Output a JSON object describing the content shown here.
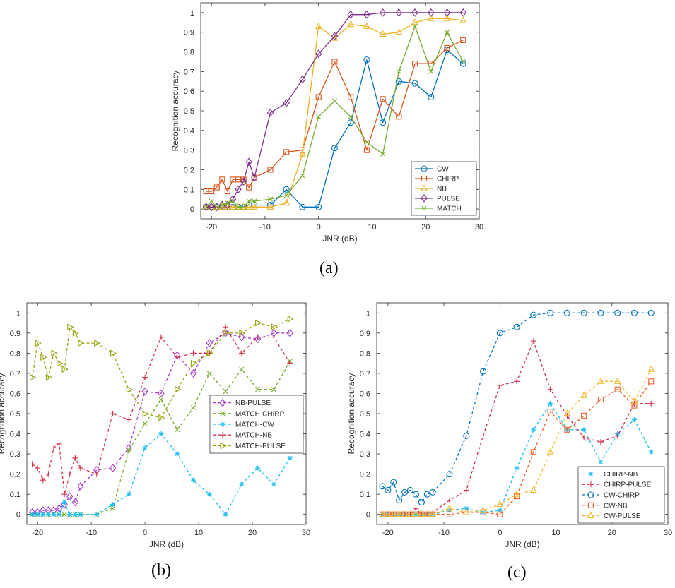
{
  "captions": [
    "(a)",
    "(b)",
    "(c)"
  ],
  "chart_data": [
    {
      "id": "a",
      "type": "line",
      "caption": "(a)",
      "title": "",
      "xlabel": "JNR (dB)",
      "ylabel": "Recognition accuracy",
      "xlim": [
        -22,
        30
      ],
      "ylim": [
        -0.05,
        1.05
      ],
      "xticks": [
        -20,
        -10,
        0,
        10,
        20,
        30
      ],
      "yticks": [
        0,
        0.1,
        0.2,
        0.3,
        0.4,
        0.5,
        0.6,
        0.7,
        0.8,
        0.9,
        1
      ],
      "grid": false,
      "legend_position": "bottom-right",
      "series": [
        {
          "name": "CW",
          "color": "#0072bd",
          "marker": "circle",
          "style": "solid",
          "x": [
            -21,
            -20,
            -19,
            -18,
            -17,
            -16,
            -15,
            -14,
            -13,
            -12,
            -9,
            -6,
            -3,
            0,
            3,
            6,
            9,
            12,
            15,
            18,
            21,
            24,
            27
          ],
          "y": [
            0.01,
            0.01,
            0.01,
            0.01,
            0.01,
            0.01,
            0.01,
            0.01,
            0.02,
            0.02,
            0.02,
            0.1,
            0.01,
            0.01,
            0.31,
            0.44,
            0.76,
            0.44,
            0.65,
            0.64,
            0.57,
            0.81,
            0.74
          ]
        },
        {
          "name": "CHIRP",
          "color": "#d95319",
          "marker": "square",
          "style": "solid",
          "x": [
            -21,
            -20,
            -19,
            -18,
            -17,
            -16,
            -15,
            -14,
            -13,
            -12,
            -9,
            -6,
            -3,
            0,
            3,
            6,
            9,
            12,
            15,
            18,
            21,
            24,
            27
          ],
          "y": [
            0.09,
            0.09,
            0.11,
            0.15,
            0.09,
            0.15,
            0.15,
            0.15,
            0.11,
            0.16,
            0.2,
            0.29,
            0.3,
            0.57,
            0.75,
            0.57,
            0.3,
            0.56,
            0.47,
            0.74,
            0.74,
            0.82,
            0.86
          ]
        },
        {
          "name": "NB",
          "color": "#edb120",
          "marker": "triangle-up",
          "style": "solid",
          "x": [
            -21,
            -20,
            -19,
            -18,
            -17,
            -16,
            -15,
            -14,
            -13,
            -12,
            -9,
            -6,
            -3,
            0,
            3,
            6,
            9,
            12,
            15,
            18,
            21,
            24,
            27
          ],
          "y": [
            0.01,
            0.01,
            0.01,
            0.01,
            0.01,
            0.01,
            0.01,
            0.01,
            0.01,
            0.01,
            0.01,
            0.03,
            0.28,
            0.93,
            0.87,
            0.94,
            0.93,
            0.89,
            0.9,
            0.95,
            0.97,
            0.97,
            0.96
          ]
        },
        {
          "name": "PULSE",
          "color": "#7e2f8e",
          "marker": "diamond",
          "style": "solid",
          "x": [
            -21,
            -20,
            -19,
            -18,
            -17,
            -16,
            -15,
            -14,
            -13,
            -12,
            -9,
            -6,
            -3,
            0,
            3,
            6,
            9,
            12,
            15,
            18,
            21,
            24,
            27
          ],
          "y": [
            0.01,
            0.01,
            0.01,
            0.02,
            0.02,
            0.05,
            0.1,
            0.14,
            0.24,
            0.16,
            0.49,
            0.54,
            0.66,
            0.79,
            0.88,
            0.99,
            0.99,
            1.0,
            1.0,
            1.0,
            1.0,
            1.0,
            1.0
          ]
        },
        {
          "name": "MATCH",
          "color": "#77ac30",
          "marker": "x",
          "style": "solid",
          "x": [
            -21,
            -20,
            -19,
            -18,
            -17,
            -16,
            -15,
            -14,
            -13,
            -12,
            -9,
            -6,
            -3,
            0,
            3,
            6,
            9,
            12,
            15,
            18,
            21,
            24,
            27
          ],
          "y": [
            0.01,
            0.04,
            0.01,
            0.02,
            0.03,
            0.04,
            0.01,
            0.01,
            0.04,
            0.04,
            0.05,
            0.07,
            0.17,
            0.47,
            0.55,
            0.47,
            0.34,
            0.28,
            0.7,
            0.93,
            0.7,
            0.9,
            0.75
          ]
        }
      ]
    },
    {
      "id": "b",
      "type": "line",
      "caption": "(b)",
      "title": "",
      "xlabel": "JNR (dB)",
      "ylabel": "Recognition accuracy",
      "xlim": [
        -22,
        30
      ],
      "ylim": [
        -0.05,
        1.05
      ],
      "xticks": [
        -20,
        -10,
        0,
        10,
        20,
        30
      ],
      "yticks": [
        0,
        0.1,
        0.2,
        0.3,
        0.4,
        0.5,
        0.6,
        0.7,
        0.8,
        0.9,
        1
      ],
      "grid": false,
      "legend_position": "middle-right",
      "series": [
        {
          "name": "NB-PULSE",
          "color": "#a23ed1",
          "marker": "diamond",
          "style": "dashed",
          "x": [
            -21,
            -20,
            -19,
            -18,
            -17,
            -16,
            -15,
            -14,
            -13,
            -12,
            -9,
            -6,
            -3,
            0,
            3,
            6,
            9,
            12,
            15,
            18,
            21,
            24,
            27
          ],
          "y": [
            0.01,
            0.01,
            0.02,
            0.02,
            0.02,
            0.03,
            0.05,
            0.09,
            0.06,
            0.14,
            0.22,
            0.23,
            0.33,
            0.61,
            0.6,
            0.79,
            0.7,
            0.85,
            0.9,
            0.88,
            0.87,
            0.9,
            0.9
          ]
        },
        {
          "name": "MATCH-CHIRP",
          "color": "#77ac30",
          "marker": "x",
          "style": "dashed",
          "x": [
            -21,
            -20,
            -19,
            -18,
            -17,
            -16,
            -15,
            -14,
            -13,
            -12,
            -9,
            -6,
            -3,
            0,
            3,
            6,
            9,
            12,
            15,
            18,
            21,
            24,
            27
          ],
          "y": [
            0.0,
            0.0,
            0.0,
            0.0,
            0.0,
            0.0,
            0.0,
            0.0,
            0.0,
            0.0,
            0.0,
            0.03,
            0.32,
            0.45,
            0.57,
            0.42,
            0.53,
            0.7,
            0.61,
            0.72,
            0.62,
            0.62,
            0.76
          ]
        },
        {
          "name": "MATCH-CW",
          "color": "#1fbff0",
          "marker": "asterisk",
          "style": "dashed",
          "x": [
            -21,
            -20,
            -19,
            -18,
            -17,
            -16,
            -15,
            -14,
            -13,
            -12,
            -9,
            -6,
            -3,
            0,
            3,
            6,
            9,
            12,
            15,
            18,
            21,
            24,
            27
          ],
          "y": [
            0.0,
            0.0,
            0.0,
            0.0,
            0.0,
            0.0,
            0.06,
            0.0,
            0.0,
            0.0,
            0.0,
            0.05,
            0.1,
            0.33,
            0.4,
            0.3,
            0.17,
            0.1,
            0.0,
            0.15,
            0.23,
            0.15,
            0.28
          ]
        },
        {
          "name": "MATCH-NB",
          "color": "#d6304a",
          "marker": "plus",
          "style": "dashed",
          "x": [
            -21,
            -20,
            -19,
            -18,
            -17,
            -16,
            -15,
            -14,
            -13,
            -12,
            -9,
            -6,
            -3,
            0,
            3,
            6,
            9,
            12,
            15,
            18,
            21,
            24,
            27
          ],
          "y": [
            0.25,
            0.23,
            0.17,
            0.2,
            0.33,
            0.35,
            0.1,
            0.2,
            0.28,
            0.23,
            0.2,
            0.5,
            0.47,
            0.68,
            0.88,
            0.78,
            0.8,
            0.8,
            0.93,
            0.8,
            0.88,
            0.88,
            0.75
          ]
        },
        {
          "name": "MATCH-PULSE",
          "color": "#9ba30e",
          "marker": "triangle-right",
          "style": "dashed",
          "x": [
            -21,
            -20,
            -19,
            -18,
            -17,
            -16,
            -15,
            -14,
            -13,
            -12,
            -9,
            -6,
            -3,
            0,
            3,
            6,
            9,
            12,
            15,
            18,
            21,
            24,
            27
          ],
          "y": [
            0.68,
            0.85,
            0.78,
            0.68,
            0.8,
            0.75,
            0.72,
            0.93,
            0.9,
            0.85,
            0.85,
            0.8,
            0.62,
            0.5,
            0.48,
            0.62,
            0.75,
            0.8,
            0.9,
            0.9,
            0.95,
            0.93,
            0.97
          ]
        }
      ]
    },
    {
      "id": "c",
      "type": "line",
      "caption": "(c)",
      "title": "",
      "xlabel": "JNR (dB)",
      "ylabel": "Recognition accuracy",
      "xlim": [
        -22,
        30
      ],
      "ylim": [
        -0.05,
        1.05
      ],
      "xticks": [
        -20,
        -10,
        0,
        10,
        20,
        30
      ],
      "yticks": [
        0,
        0.1,
        0.2,
        0.3,
        0.4,
        0.5,
        0.6,
        0.7,
        0.8,
        0.9,
        1
      ],
      "grid": false,
      "legend_position": "bottom-right",
      "series": [
        {
          "name": "CHIRP-NB",
          "color": "#1fbff0",
          "marker": "asterisk",
          "style": "dashed",
          "x": [
            -21,
            -20,
            -19,
            -18,
            -17,
            -16,
            -15,
            -14,
            -13,
            -12,
            -9,
            -6,
            -3,
            0,
            3,
            6,
            9,
            12,
            15,
            18,
            21,
            24,
            27
          ],
          "y": [
            0.0,
            0.0,
            0.0,
            0.0,
            0.0,
            0.0,
            0.0,
            0.0,
            0.0,
            0.0,
            0.02,
            0.03,
            0.01,
            0.02,
            0.23,
            0.42,
            0.55,
            0.42,
            0.42,
            0.26,
            0.4,
            0.47,
            0.31
          ]
        },
        {
          "name": "CHIRP-PULSE",
          "color": "#d6304a",
          "marker": "plus",
          "style": "dashed",
          "x": [
            -21,
            -20,
            -19,
            -18,
            -17,
            -16,
            -15,
            -14,
            -13,
            -12,
            -9,
            -6,
            -3,
            0,
            3,
            6,
            9,
            12,
            15,
            18,
            21,
            24,
            27
          ],
          "y": [
            0.0,
            0.0,
            0.0,
            0.0,
            0.0,
            0.0,
            0.03,
            0.0,
            0.0,
            0.01,
            0.07,
            0.12,
            0.39,
            0.64,
            0.66,
            0.86,
            0.62,
            0.49,
            0.38,
            0.36,
            0.39,
            0.55,
            0.55
          ]
        },
        {
          "name": "CW-CHIRP",
          "color": "#0072bd",
          "marker": "circle",
          "style": "dashed",
          "x": [
            -21,
            -20,
            -19,
            -18,
            -17,
            -16,
            -15,
            -14,
            -13,
            -12,
            -9,
            -6,
            -3,
            0,
            3,
            6,
            9,
            12,
            15,
            18,
            21,
            24,
            27
          ],
          "y": [
            0.14,
            0.12,
            0.16,
            0.07,
            0.11,
            0.12,
            0.1,
            0.06,
            0.1,
            0.11,
            0.2,
            0.39,
            0.71,
            0.9,
            0.93,
            0.99,
            1.0,
            1.0,
            1.0,
            1.0,
            1.0,
            1.0,
            1.0
          ]
        },
        {
          "name": "CW-NB",
          "color": "#f0622a",
          "marker": "square",
          "style": "dashed",
          "x": [
            -21,
            -20,
            -19,
            -18,
            -17,
            -16,
            -15,
            -14,
            -13,
            -12,
            -9,
            -6,
            -3,
            0,
            3,
            6,
            9,
            12,
            15,
            18,
            21,
            24,
            27
          ],
          "y": [
            0.0,
            0.0,
            0.0,
            0.0,
            0.0,
            0.0,
            0.0,
            0.0,
            0.0,
            0.0,
            0.0,
            0.01,
            0.01,
            0.0,
            0.09,
            0.31,
            0.51,
            0.42,
            0.49,
            0.57,
            0.62,
            0.54,
            0.66
          ]
        },
        {
          "name": "CW-PULSE",
          "color": "#f5b82e",
          "marker": "triangle-up",
          "style": "dashed",
          "x": [
            -21,
            -20,
            -19,
            -18,
            -17,
            -16,
            -15,
            -14,
            -13,
            -12,
            -9,
            -6,
            -3,
            0,
            3,
            6,
            9,
            12,
            15,
            18,
            21,
            24,
            27
          ],
          "y": [
            0.0,
            0.0,
            0.0,
            0.0,
            0.0,
            0.0,
            0.0,
            0.0,
            0.0,
            0.0,
            0.03,
            0.01,
            0.02,
            0.05,
            0.1,
            0.12,
            0.31,
            0.5,
            0.59,
            0.66,
            0.66,
            0.56,
            0.72
          ]
        }
      ]
    }
  ]
}
